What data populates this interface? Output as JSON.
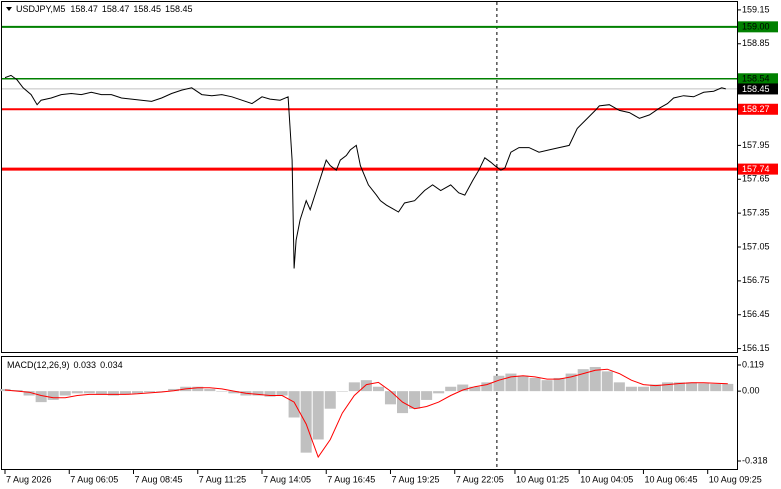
{
  "chart_data": [
    {
      "type": "line",
      "title": "USDJPY,M5",
      "ohlc": [
        158.47,
        158.47,
        158.45,
        158.45
      ],
      "color": "#000000",
      "xlim": [
        -1.5,
        364.6
      ],
      "ylim": [
        156.12,
        159.22
      ],
      "xticks": [
        {
          "value": 0,
          "label": "7 Aug 2026"
        },
        {
          "value": 32,
          "label": "7 Aug 06:05"
        },
        {
          "value": 64,
          "label": "7 Aug 08:45"
        },
        {
          "value": 96,
          "label": "7 Aug 11:25"
        },
        {
          "value": 128,
          "label": "7 Aug 14:05"
        },
        {
          "value": 160,
          "label": "7 Aug 16:45"
        },
        {
          "value": 192,
          "label": "7 Aug 19:25"
        },
        {
          "value": 224,
          "label": "7 Aug 22:05"
        },
        {
          "value": 254,
          "label": "10 Aug 01:25"
        },
        {
          "value": 286,
          "label": "10 Aug 04:05"
        },
        {
          "value": 318,
          "label": "10 Aug 06:45"
        },
        {
          "value": 350,
          "label": "10 Aug 09:25"
        }
      ],
      "yticks": [
        159.15,
        158.85,
        157.95,
        157.65,
        157.35,
        157.05,
        156.75,
        156.45,
        156.15
      ],
      "separator_x": 245,
      "levels": [
        {
          "value": 159,
          "label": "159.00",
          "color": "#008000",
          "text_color": "#000000",
          "width": 2
        },
        {
          "value": 158.54,
          "color": "#008000",
          "text_color": "#000000",
          "width": 1.5
        },
        {
          "value": 158.45,
          "color": "#c0c0c0",
          "box_color": "#000000",
          "text_color": "#ffffff",
          "width": 1
        },
        {
          "value": 158.27,
          "color": "#ff0000",
          "text_color": "#ffffff",
          "width": 2
        },
        {
          "value": 157.74,
          "color": "#ff0000",
          "text_color": "#ffffff",
          "width": 3
        }
      ],
      "x": [
        0,
        3,
        6,
        9,
        13,
        16,
        18,
        23,
        28,
        33,
        38,
        43,
        48,
        53,
        58,
        63,
        68,
        73,
        78,
        83,
        88,
        93,
        98,
        103,
        108,
        113,
        118,
        123,
        128,
        132,
        137,
        141,
        143,
        144,
        145,
        147,
        150,
        152,
        156,
        160,
        162,
        165,
        167,
        170,
        172,
        175,
        177,
        181,
        185,
        187,
        190,
        193,
        196,
        199,
        204,
        209,
        213,
        217,
        222,
        226,
        229,
        233,
        236,
        239,
        242,
        244,
        247,
        249,
        252,
        256,
        261,
        266,
        271,
        276,
        281,
        285,
        289,
        294,
        296,
        301,
        306,
        311,
        316,
        321,
        326,
        330,
        333,
        338,
        343,
        348,
        353,
        357,
        359
      ],
      "values": [
        158.55,
        158.57,
        158.53,
        158.46,
        158.4,
        158.31,
        158.35,
        158.37,
        158.4,
        158.41,
        158.4,
        158.42,
        158.4,
        158.4,
        158.37,
        158.36,
        158.35,
        158.34,
        158.37,
        158.41,
        158.44,
        158.46,
        158.4,
        158.39,
        158.4,
        158.38,
        158.35,
        158.32,
        158.38,
        158.36,
        158.35,
        158.38,
        157.82,
        156.86,
        157.11,
        157.29,
        157.46,
        157.38,
        157.6,
        157.82,
        157.77,
        157.73,
        157.82,
        157.86,
        157.91,
        157.95,
        157.77,
        157.6,
        157.51,
        157.46,
        157.42,
        157.39,
        157.36,
        157.44,
        157.46,
        157.55,
        157.6,
        157.55,
        157.6,
        157.53,
        157.51,
        157.64,
        157.73,
        157.84,
        157.8,
        157.77,
        157.73,
        157.75,
        157.89,
        157.93,
        157.93,
        157.89,
        157.91,
        157.93,
        157.95,
        158.1,
        158.17,
        158.26,
        158.3,
        158.31,
        158.26,
        158.24,
        158.19,
        158.22,
        158.28,
        158.32,
        158.37,
        158.39,
        158.38,
        158.42,
        158.43,
        158.46,
        158.45
      ]
    },
    {
      "type": "macd",
      "title": "MACD(12,26,9)",
      "current": [
        0.033,
        0.034
      ],
      "xlim": [
        -1.5,
        364.6
      ],
      "ylim": [
        -0.318,
        0.119
      ],
      "yticks": [
        0.119,
        {
          "value": 0,
          "label": "0.00"
        },
        -0.318
      ],
      "x": [
        0,
        6,
        12,
        18,
        24,
        30,
        36,
        42,
        48,
        54,
        60,
        66,
        72,
        78,
        84,
        90,
        96,
        102,
        108,
        114,
        120,
        126,
        132,
        138,
        144,
        150,
        156,
        162,
        168,
        174,
        180,
        186,
        192,
        198,
        204,
        210,
        216,
        222,
        228,
        234,
        240,
        246,
        252,
        258,
        264,
        270,
        276,
        282,
        288,
        294,
        300,
        306,
        312,
        318,
        324,
        330,
        336,
        342,
        348,
        354,
        360
      ],
      "histogram": {
        "color": "#c0c0c0",
        "values": [
          0.01,
          0.005,
          -0.02,
          -0.05,
          -0.04,
          -0.02,
          -0.01,
          -0.01,
          -0.015,
          -0.02,
          -0.015,
          -0.01,
          -0.005,
          0.0,
          0.01,
          0.02,
          0.02,
          0.01,
          0.0,
          -0.01,
          -0.02,
          -0.02,
          -0.025,
          -0.02,
          -0.12,
          -0.28,
          -0.22,
          -0.08,
          0.0,
          0.04,
          0.05,
          0.02,
          -0.06,
          -0.1,
          -0.08,
          -0.04,
          -0.01,
          0.02,
          0.03,
          0.02,
          0.04,
          0.07,
          0.08,
          0.07,
          0.06,
          0.05,
          0.06,
          0.08,
          0.1,
          0.11,
          0.09,
          0.04,
          0.02,
          0.02,
          0.03,
          0.04,
          0.04,
          0.04,
          0.035,
          0.033,
          0.033
        ]
      },
      "signal": {
        "color": "#ff0000",
        "values": [
          0.005,
          0.0,
          -0.005,
          -0.02,
          -0.03,
          -0.03,
          -0.02,
          -0.015,
          -0.015,
          -0.015,
          -0.015,
          -0.012,
          -0.008,
          -0.004,
          0.002,
          0.01,
          0.015,
          0.015,
          0.01,
          0.0,
          -0.01,
          -0.015,
          -0.02,
          -0.02,
          -0.05,
          -0.15,
          -0.3,
          -0.22,
          -0.1,
          -0.02,
          0.03,
          0.04,
          0.0,
          -0.05,
          -0.08,
          -0.07,
          -0.05,
          -0.02,
          0.005,
          0.02,
          0.03,
          0.05,
          0.065,
          0.07,
          0.065,
          0.055,
          0.055,
          0.065,
          0.08,
          0.095,
          0.1,
          0.08,
          0.05,
          0.03,
          0.025,
          0.03,
          0.035,
          0.038,
          0.038,
          0.036,
          0.034
        ]
      }
    }
  ]
}
